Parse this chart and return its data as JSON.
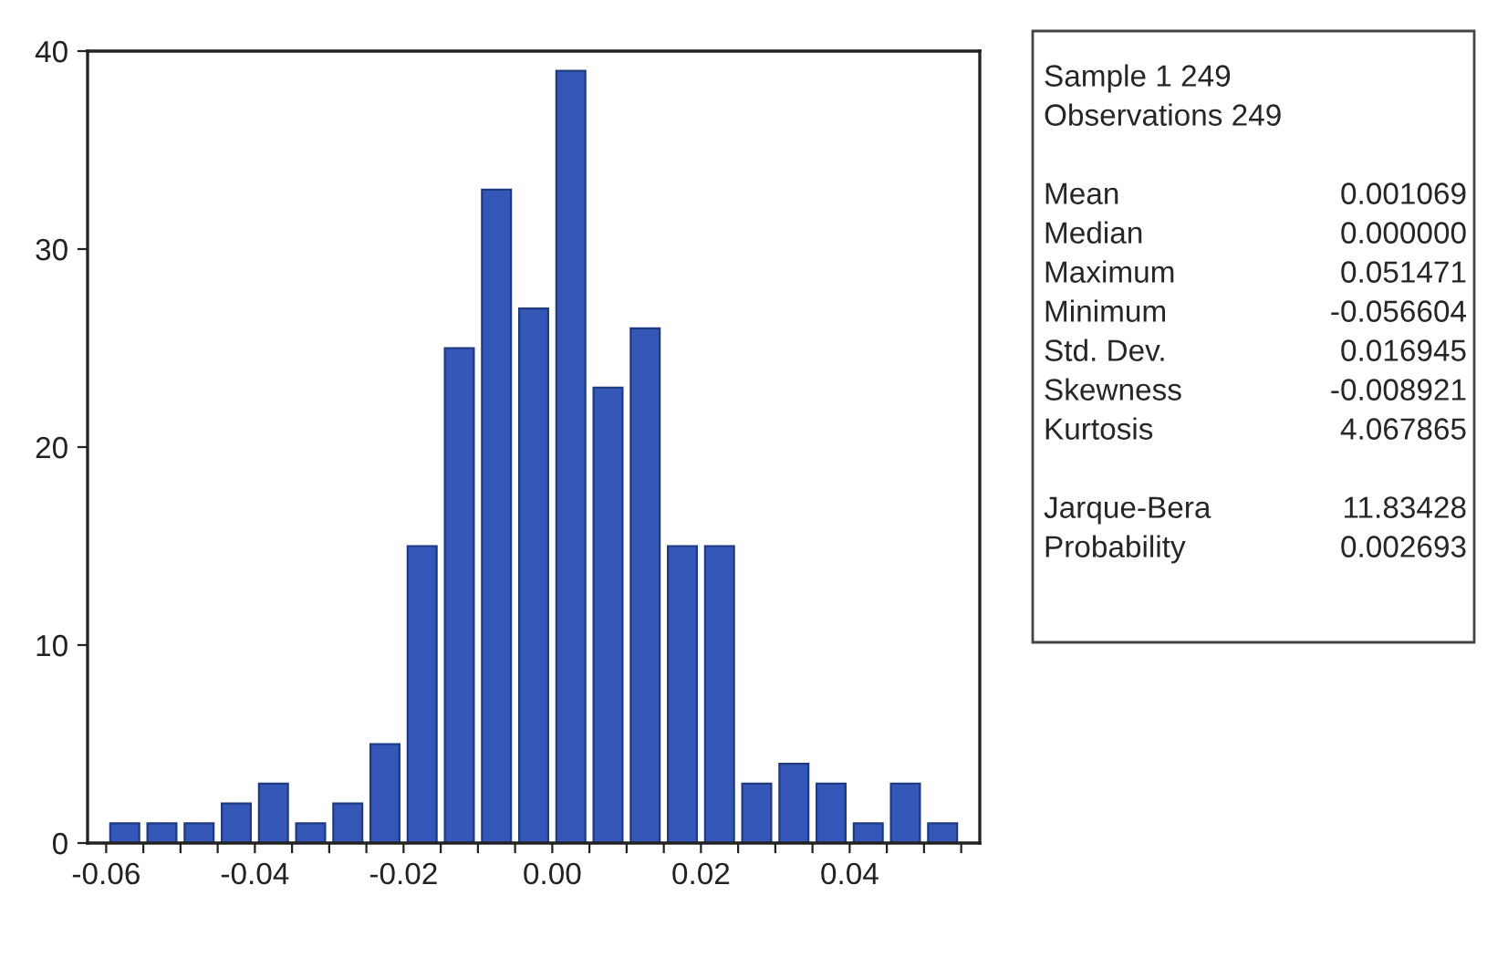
{
  "chart_data": {
    "type": "histogram",
    "color": "#3558b8",
    "bins": [
      -0.06,
      -0.055,
      -0.05,
      -0.045,
      -0.04,
      -0.035,
      -0.03,
      -0.025,
      -0.02,
      -0.015,
      -0.01,
      -0.005,
      0.0,
      0.005,
      0.01,
      0.015,
      0.02,
      0.025,
      0.03,
      0.035,
      0.04,
      0.045,
      0.05,
      0.055
    ],
    "values": [
      1,
      1,
      1,
      2,
      3,
      1,
      2,
      5,
      15,
      25,
      33,
      27,
      39,
      23,
      26,
      15,
      15,
      3,
      4,
      3,
      1,
      3,
      1
    ],
    "xlim": [
      -0.0625,
      0.0575
    ],
    "ylim": [
      0,
      40
    ],
    "xticks": [
      {
        "value": -0.06,
        "label": "-0.06"
      },
      {
        "value": -0.055,
        "label": null
      },
      {
        "value": -0.05,
        "label": null
      },
      {
        "value": -0.045,
        "label": null
      },
      {
        "value": -0.04,
        "label": "-0.04"
      },
      {
        "value": -0.035,
        "label": null
      },
      {
        "value": -0.03,
        "label": null
      },
      {
        "value": -0.025,
        "label": null
      },
      {
        "value": -0.02,
        "label": "-0.02"
      },
      {
        "value": -0.015,
        "label": null
      },
      {
        "value": -0.01,
        "label": null
      },
      {
        "value": -0.005,
        "label": null
      },
      {
        "value": 0.0,
        "label": "0.00"
      },
      {
        "value": 0.005,
        "label": null
      },
      {
        "value": 0.01,
        "label": null
      },
      {
        "value": 0.015,
        "label": null
      },
      {
        "value": 0.02,
        "label": "0.02"
      },
      {
        "value": 0.025,
        "label": null
      },
      {
        "value": 0.03,
        "label": null
      },
      {
        "value": 0.035,
        "label": null
      },
      {
        "value": 0.04,
        "label": "0.04"
      },
      {
        "value": 0.045,
        "label": null
      },
      {
        "value": 0.05,
        "label": null
      },
      {
        "value": 0.055,
        "label": null
      }
    ],
    "yticks": [
      0,
      10,
      20,
      30,
      40
    ],
    "grid": false,
    "annotations": [
      "Sample 1 249",
      "Observations 249",
      "Mean",
      "0.001069",
      "Median",
      "0.000000",
      "Maximum",
      "0.051471",
      "Minimum",
      "-0.056604",
      "Std. Dev.",
      "0.016945",
      "Skewness",
      "-0.008921",
      "Kurtosis",
      "4.067865",
      "Jarque-Bera",
      "11.83428",
      "Probability",
      "0.002693"
    ]
  }
}
